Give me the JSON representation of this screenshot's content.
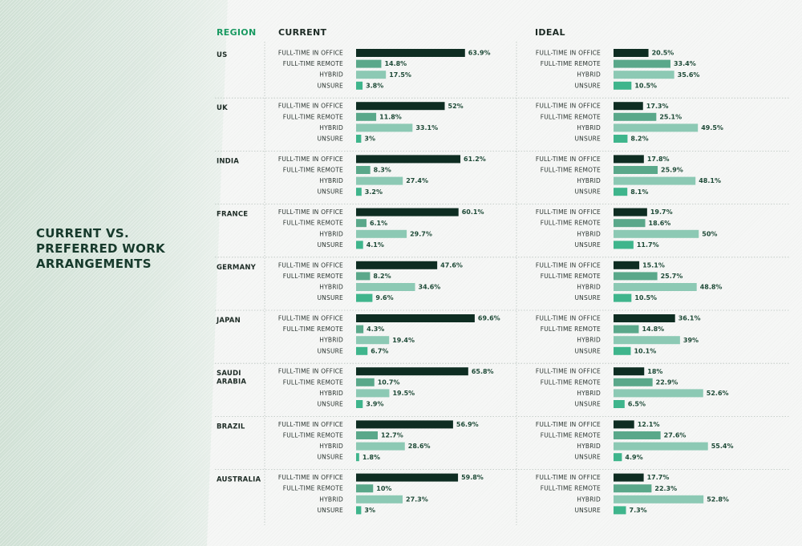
{
  "title": "CURRENT VS.\nPREFERRED WORK\nARRANGEMENTS",
  "headers": {
    "region": "REGION",
    "current": "CURRENT",
    "ideal": "IDEAL"
  },
  "colors": [
    "#0e2d22",
    "#5aa88a",
    "#8cc9b4",
    "#3fb58c"
  ],
  "chart_data": {
    "type": "bar",
    "title": "CURRENT VS. PREFERRED WORK ARRANGEMENTS",
    "categories": [
      "FULL-TIME IN OFFICE",
      "FULL-TIME REMOTE",
      "HYBRID",
      "UNSURE"
    ],
    "unit": "%",
    "regions": [
      {
        "name": "US",
        "current": [
          63.9,
          14.8,
          17.5,
          3.8
        ],
        "ideal": [
          20.5,
          33.4,
          35.6,
          10.5
        ]
      },
      {
        "name": "UK",
        "current": [
          52,
          11.8,
          33.1,
          3
        ],
        "ideal": [
          17.3,
          25.1,
          49.5,
          8.2
        ]
      },
      {
        "name": "INDIA",
        "current": [
          61.2,
          8.3,
          27.4,
          3.2
        ],
        "ideal": [
          17.8,
          25.9,
          48.1,
          8.1
        ]
      },
      {
        "name": "FRANCE",
        "current": [
          60.1,
          6.1,
          29.7,
          4.1
        ],
        "ideal": [
          19.7,
          18.6,
          50,
          11.7
        ]
      },
      {
        "name": "GERMANY",
        "current": [
          47.6,
          8.2,
          34.6,
          9.6
        ],
        "ideal": [
          15.1,
          25.7,
          48.8,
          10.5
        ]
      },
      {
        "name": "JAPAN",
        "current": [
          69.6,
          4.3,
          19.4,
          6.7
        ],
        "ideal": [
          36.1,
          14.8,
          39,
          10.1
        ]
      },
      {
        "name": "SAUDI\nARABIA",
        "current": [
          65.8,
          10.7,
          19.5,
          3.9
        ],
        "ideal": [
          18,
          22.9,
          52.6,
          6.5
        ]
      },
      {
        "name": "BRAZIL",
        "current": [
          56.9,
          12.7,
          28.6,
          1.8
        ],
        "ideal": [
          12.1,
          27.6,
          55.4,
          4.9
        ]
      },
      {
        "name": "AUSTRALIA",
        "current": [
          59.8,
          10,
          27.3,
          3
        ],
        "ideal": [
          17.7,
          22.3,
          52.8,
          7.3
        ]
      }
    ]
  }
}
